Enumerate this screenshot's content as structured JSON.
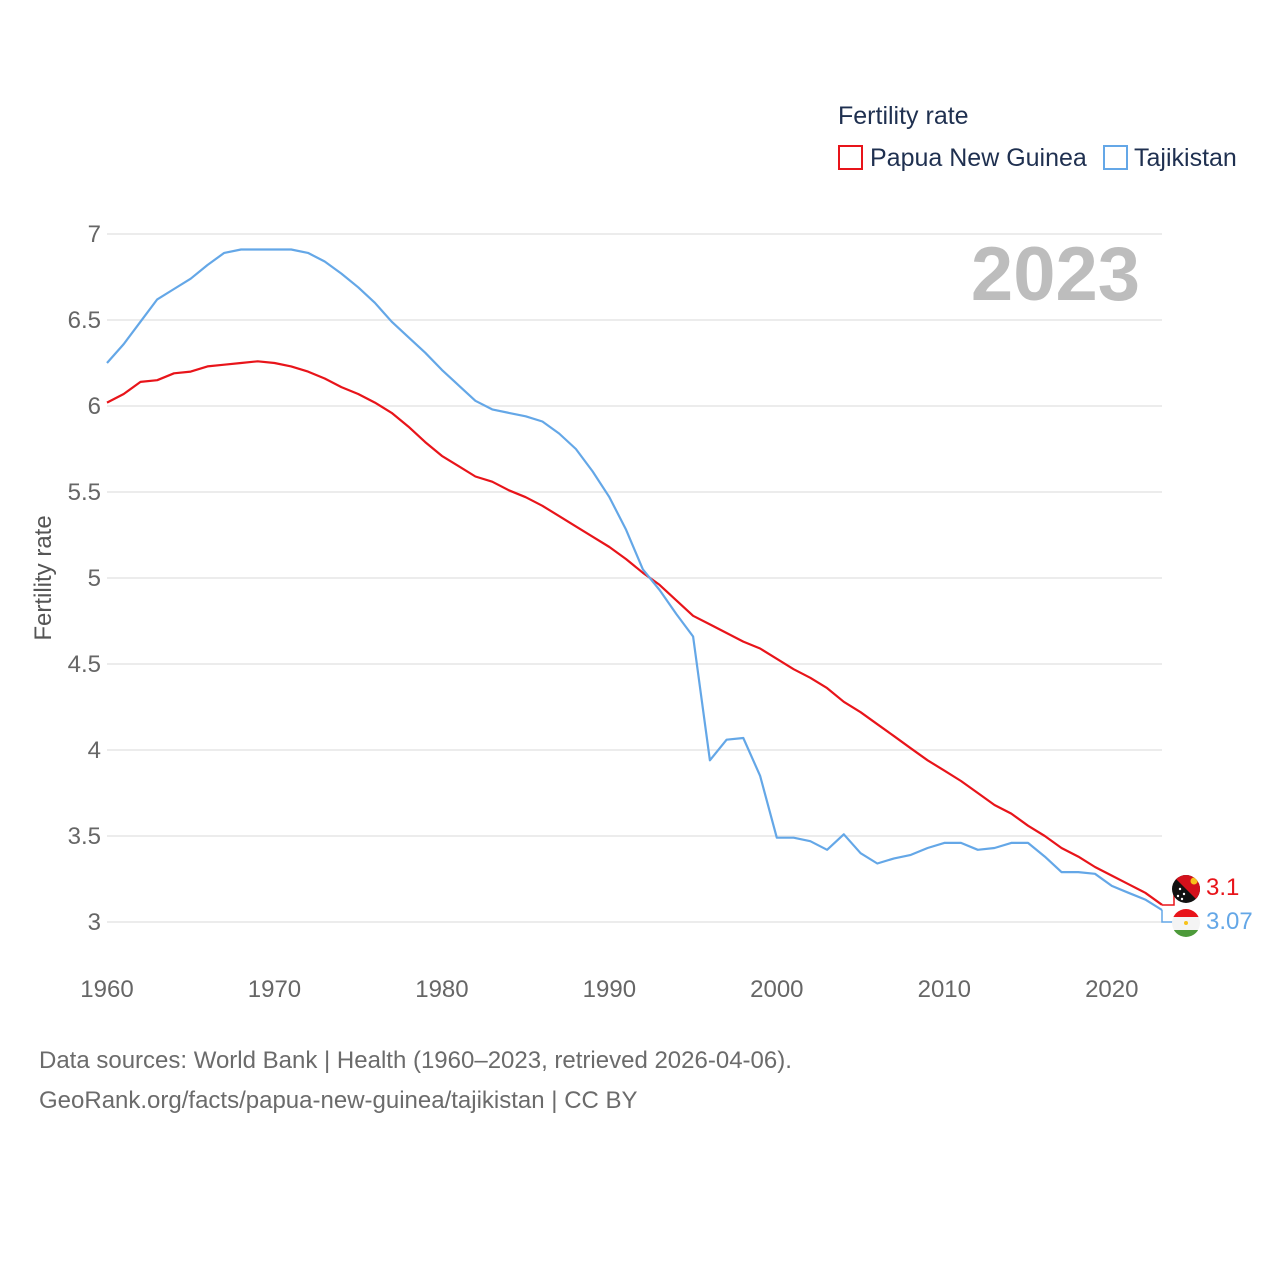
{
  "legend": {
    "title": "Fertility rate",
    "items": [
      {
        "label": "Papua New Guinea",
        "color": "#e8141a"
      },
      {
        "label": "Tajikistan",
        "color": "#64a7e7"
      }
    ]
  },
  "year_label": "2023",
  "end_labels": [
    {
      "text": "3.1",
      "color": "#e8141a",
      "flag_icon": "papua-new-guinea-flag-icon"
    },
    {
      "text": "3.07",
      "color": "#64a7e7",
      "flag_icon": "tajikistan-flag-icon"
    }
  ],
  "footer": {
    "line1": "Data sources: World Bank | Health (1960–2023, retrieved 2026-04-06).",
    "line2": "GeoRank.org/facts/papua-new-guinea/tajikistan | CC BY"
  },
  "chart_data": {
    "type": "line",
    "title": "Fertility rate",
    "xlabel": "",
    "ylabel": "Fertility rate",
    "xlim": [
      1960,
      2023
    ],
    "ylim": [
      3,
      7
    ],
    "x_ticks": [
      1960,
      1970,
      1980,
      1990,
      2000,
      2010,
      2020
    ],
    "y_ticks": [
      3,
      3.5,
      4,
      4.5,
      5,
      5.5,
      6,
      6.5,
      7
    ],
    "x_tick_labels": [
      "1960",
      "1970",
      "1980",
      "1990",
      "2000",
      "2010",
      "2020"
    ],
    "y_tick_labels": [
      "3",
      "3.5",
      "4",
      "4.5",
      "5",
      "5.5",
      "6",
      "6.5",
      "7"
    ],
    "grid": true,
    "x": [
      1960,
      1961,
      1962,
      1963,
      1964,
      1965,
      1966,
      1967,
      1968,
      1969,
      1970,
      1971,
      1972,
      1973,
      1974,
      1975,
      1976,
      1977,
      1978,
      1979,
      1980,
      1981,
      1982,
      1983,
      1984,
      1985,
      1986,
      1987,
      1988,
      1989,
      1990,
      1991,
      1992,
      1993,
      1994,
      1995,
      1996,
      1997,
      1998,
      1999,
      2000,
      2001,
      2002,
      2003,
      2004,
      2005,
      2006,
      2007,
      2008,
      2009,
      2010,
      2011,
      2012,
      2013,
      2014,
      2015,
      2016,
      2017,
      2018,
      2019,
      2020,
      2021,
      2022,
      2023
    ],
    "series": [
      {
        "name": "Papua New Guinea",
        "color": "#e8141a",
        "values": [
          6.02,
          6.07,
          6.14,
          6.15,
          6.19,
          6.2,
          6.23,
          6.24,
          6.25,
          6.26,
          6.25,
          6.23,
          6.2,
          6.16,
          6.11,
          6.07,
          6.02,
          5.96,
          5.88,
          5.79,
          5.71,
          5.65,
          5.59,
          5.56,
          5.51,
          5.47,
          5.42,
          5.36,
          5.3,
          5.24,
          5.18,
          5.11,
          5.03,
          4.96,
          4.87,
          4.78,
          4.73,
          4.68,
          4.63,
          4.59,
          4.53,
          4.47,
          4.42,
          4.36,
          4.28,
          4.22,
          4.15,
          4.08,
          4.01,
          3.94,
          3.88,
          3.82,
          3.75,
          3.68,
          3.63,
          3.56,
          3.5,
          3.43,
          3.38,
          3.32,
          3.27,
          3.22,
          3.17,
          3.1
        ]
      },
      {
        "name": "Tajikistan",
        "color": "#64a7e7",
        "values": [
          6.25,
          6.36,
          6.49,
          6.62,
          6.68,
          6.74,
          6.82,
          6.89,
          6.91,
          6.91,
          6.91,
          6.91,
          6.89,
          6.84,
          6.77,
          6.69,
          6.6,
          6.49,
          6.4,
          6.31,
          6.21,
          6.12,
          6.03,
          5.98,
          5.96,
          5.94,
          5.91,
          5.84,
          5.75,
          5.62,
          5.47,
          5.28,
          5.05,
          4.93,
          4.79,
          4.66,
          3.94,
          4.06,
          4.07,
          3.85,
          3.49,
          3.49,
          3.47,
          3.42,
          3.51,
          3.4,
          3.34,
          3.37,
          3.39,
          3.43,
          3.46,
          3.46,
          3.42,
          3.43,
          3.46,
          3.46,
          3.38,
          3.29,
          3.29,
          3.28,
          3.21,
          3.17,
          3.13,
          3.07
        ]
      }
    ]
  }
}
